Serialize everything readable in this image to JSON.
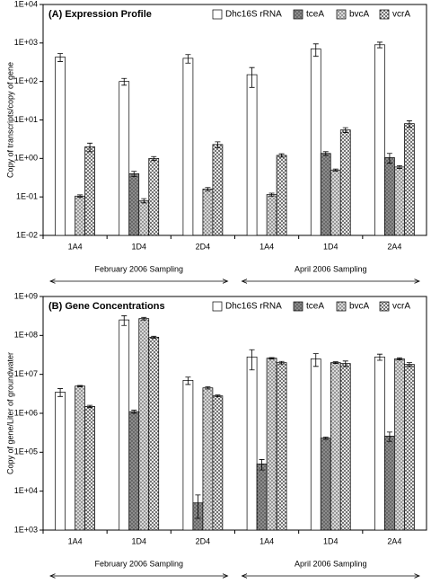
{
  "chart_data": [
    {
      "type": "bar",
      "title": "(A) Expression Profile",
      "y_label": "Copy of transcripts/copy of gene",
      "log_scale": true,
      "grid": false,
      "legend": "top-right",
      "categories": [
        "1A4",
        "1D4",
        "2D4",
        "1A4",
        "1D4",
        "2A4"
      ],
      "groups": [
        "February 2006 Sampling",
        "April 2006 Sampling"
      ],
      "ylim": [
        0.01,
        10000
      ],
      "yticks": [
        {
          "value": 0.01,
          "label": "1E-02"
        },
        {
          "value": 0.1,
          "label": "1E-01"
        },
        {
          "value": 1,
          "label": "1E+00"
        },
        {
          "value": 10,
          "label": "1E+01"
        },
        {
          "value": 100,
          "label": "1E+02"
        },
        {
          "value": 1000,
          "label": "1E+03"
        },
        {
          "value": 10000,
          "label": "1E+04"
        }
      ],
      "series": [
        {
          "name": "Dhc16S rRNA",
          "color": "#ffffff",
          "pattern": "none",
          "values": [
            430,
            100,
            400,
            150,
            700,
            900
          ],
          "errors": [
            100,
            20,
            100,
            80,
            250,
            150
          ]
        },
        {
          "name": "tceA",
          "color": "#8c8c8c",
          "pattern": "dots",
          "values": [
            null,
            0.4,
            null,
            null,
            1.35,
            1.05
          ],
          "errors": [
            null,
            0.06,
            null,
            null,
            0.15,
            0.3
          ]
        },
        {
          "name": "bvcA",
          "color": "#d9d9d9",
          "pattern": "dots",
          "values": [
            0.105,
            0.08,
            0.16,
            0.115,
            0.5,
            0.6
          ],
          "errors": [
            0.008,
            0.01,
            0.015,
            0.01,
            0.03,
            0.05
          ]
        },
        {
          "name": "vcrA",
          "color": "#ffffff",
          "pattern": "crosshatch",
          "values": [
            2.0,
            1.0,
            2.3,
            1.2,
            5.5,
            8.0
          ],
          "errors": [
            0.5,
            0.12,
            0.4,
            0.12,
            0.8,
            1.5
          ]
        }
      ]
    },
    {
      "type": "bar",
      "title": "(B) Gene Concentrations",
      "y_label": "Copy of gene/Liter of groundwater",
      "log_scale": true,
      "grid": false,
      "legend": "top-right",
      "categories": [
        "1A4",
        "1D4",
        "2D4",
        "1A4",
        "1D4",
        "2A4"
      ],
      "groups": [
        "February 2006 Sampling",
        "April 2006 Sampling"
      ],
      "ylim": [
        1000,
        1000000000
      ],
      "yticks": [
        {
          "value": 1000,
          "label": "1E+03"
        },
        {
          "value": 10000,
          "label": "1E+04"
        },
        {
          "value": 100000,
          "label": "1E+05"
        },
        {
          "value": 1000000,
          "label": "1E+06"
        },
        {
          "value": 10000000,
          "label": "1E+07"
        },
        {
          "value": 100000000,
          "label": "1E+08"
        },
        {
          "value": 1000000000,
          "label": "1E+09"
        }
      ],
      "series": [
        {
          "name": "Dhc16S rRNA",
          "color": "#ffffff",
          "pattern": "none",
          "values": [
            3500000,
            250000000,
            7000000,
            28000000,
            25000000,
            28000000
          ],
          "errors": [
            800000,
            70000000,
            1500000,
            15000000,
            9000000,
            5000000
          ]
        },
        {
          "name": "tceA",
          "color": "#8c8c8c",
          "pattern": "dots",
          "values": [
            null,
            1100000,
            5000,
            50000,
            230000,
            260000
          ],
          "errors": [
            null,
            100000,
            3000,
            15000,
            15000,
            70000
          ]
        },
        {
          "name": "bvcA",
          "color": "#d9d9d9",
          "pattern": "dots",
          "values": [
            5000000,
            270000000,
            4500000,
            26000000,
            20000000,
            25000000
          ],
          "errors": [
            200000,
            20000000,
            300000,
            1000000,
            1000000,
            1500000
          ]
        },
        {
          "name": "vcrA",
          "color": "#ffffff",
          "pattern": "crosshatch",
          "values": [
            1500000,
            90000000,
            2800000,
            20000000,
            19000000,
            18000000
          ],
          "errors": [
            100000,
            5000000,
            150000,
            1500000,
            3000000,
            2000000
          ]
        }
      ]
    }
  ]
}
